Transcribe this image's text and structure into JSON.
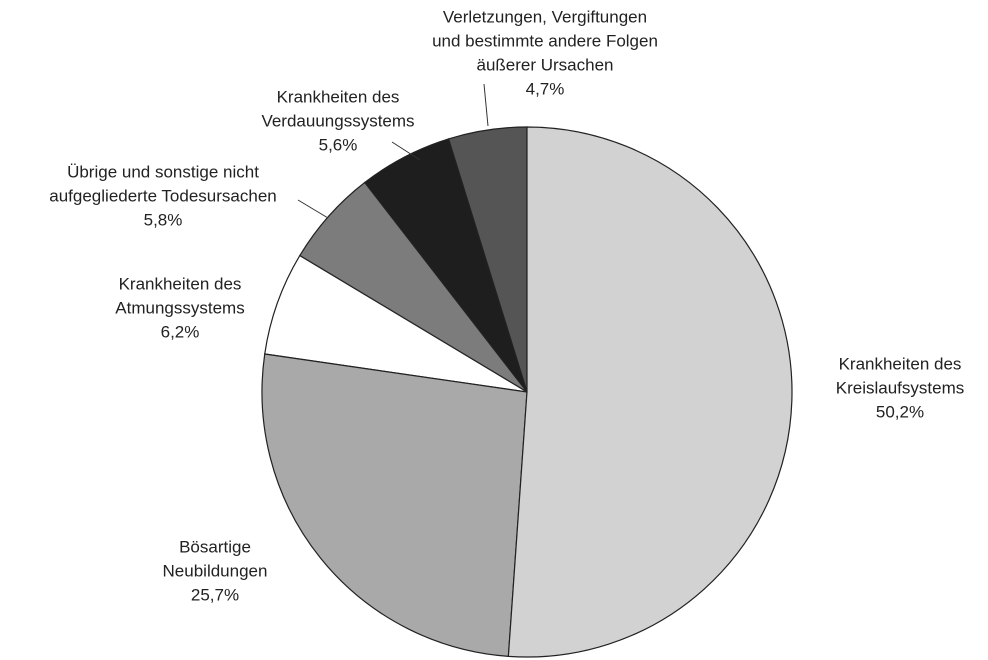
{
  "chart_data": {
    "type": "pie",
    "categories": [
      [
        "Krankheiten des",
        "Kreislaufsystems"
      ],
      [
        "Bösartige",
        "Neubildungen"
      ],
      [
        "Krankheiten des",
        "Atmungssystems"
      ],
      [
        "Übrige und sonstige nicht",
        "aufgegliederte Todesursachen"
      ],
      [
        "Krankheiten des",
        "Verdauungssystems"
      ],
      [
        "Verletzungen, Vergiftungen",
        "und bestimmte andere Folgen",
        "äußerer Ursachen"
      ]
    ],
    "values": [
      50.2,
      25.7,
      6.2,
      5.8,
      5.6,
      4.7
    ],
    "value_labels": [
      "50,2%",
      "25,7%",
      "6,2%",
      "5,8%",
      "5,6%",
      "4,7%"
    ],
    "colors": [
      "#d2d2d2",
      "#a9a9a9",
      "#ffffff",
      "#7c7c7c",
      "#1e1e1e",
      "#555555"
    ]
  }
}
